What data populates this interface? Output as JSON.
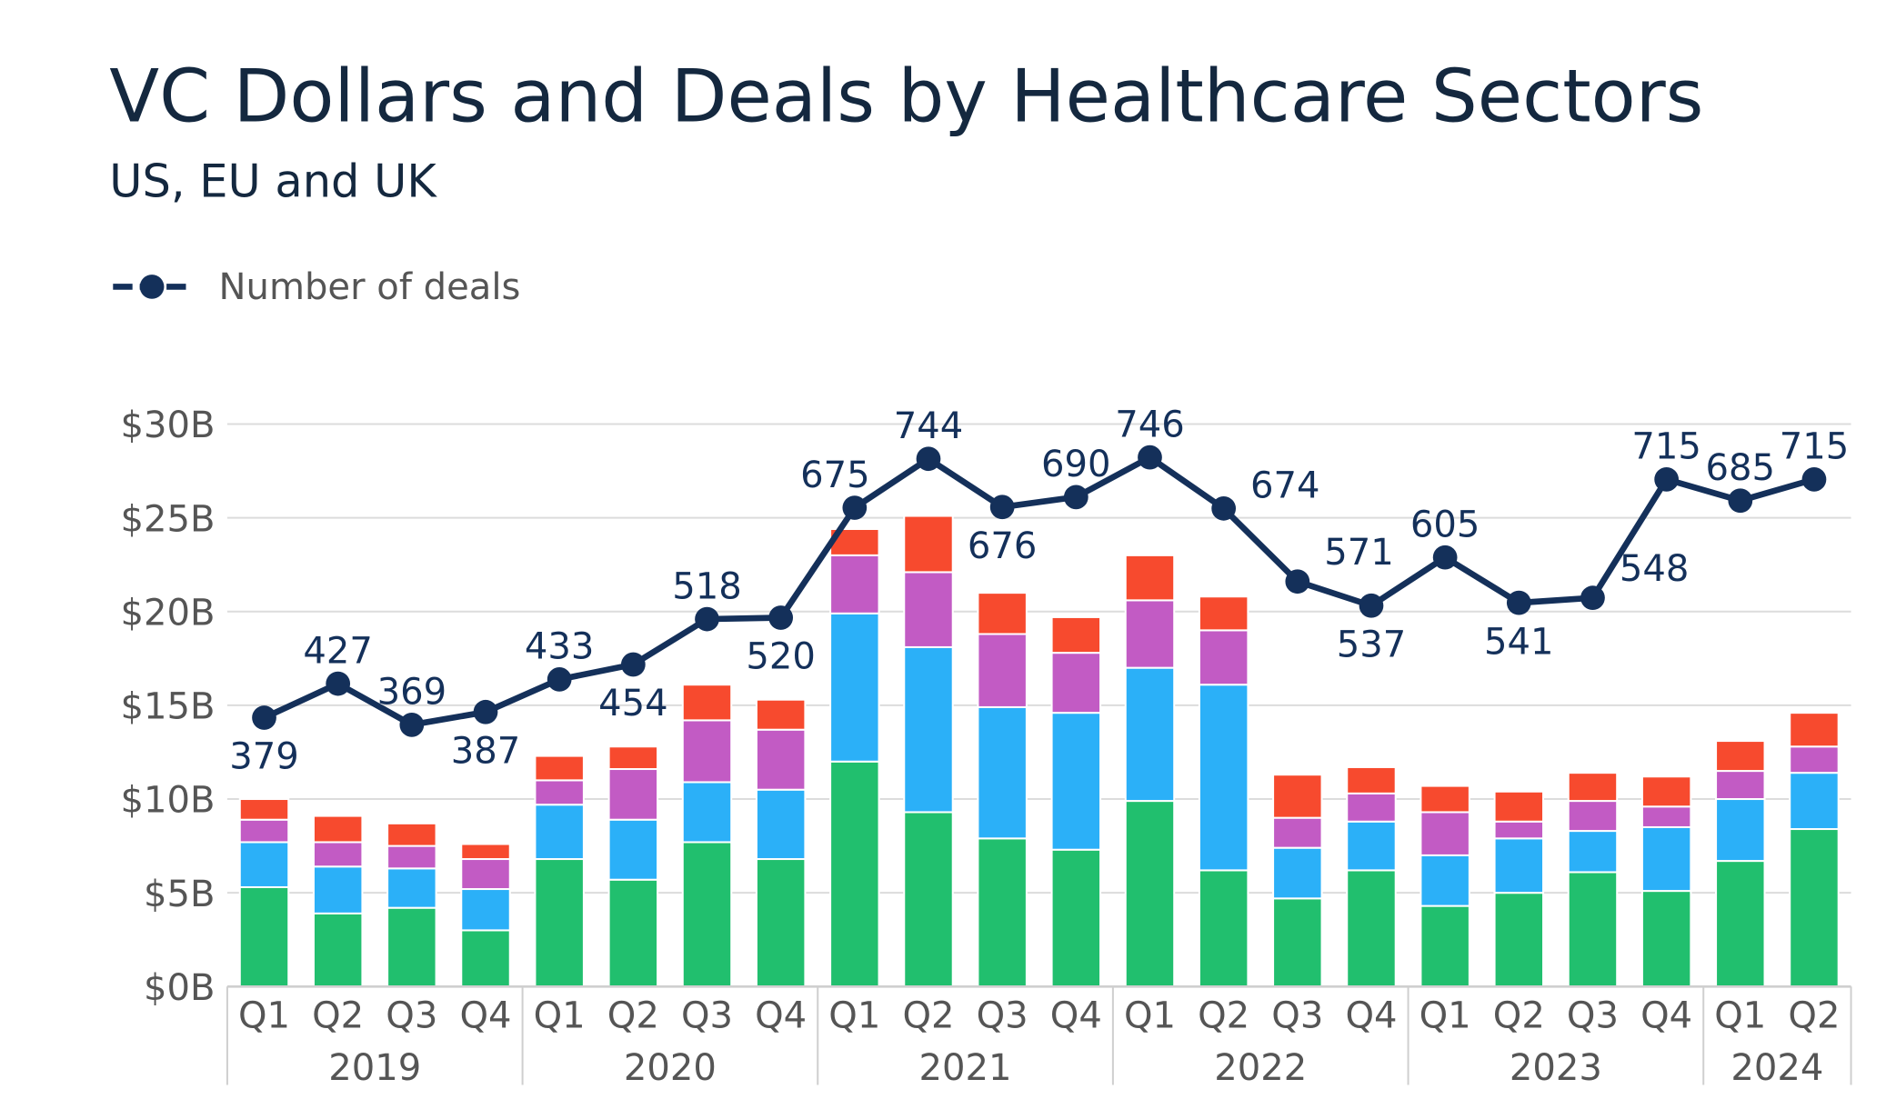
{
  "chart_data": {
    "type": "bar",
    "stacked": true,
    "title": "VC Dollars and Deals by Healthcare Sectors",
    "subtitle": "US, EU and UK",
    "ylim": [
      0,
      30
    ],
    "yticks": [
      "$0B",
      "$5B",
      "$10B",
      "$15B",
      "$20B",
      "$25B",
      "$30B"
    ],
    "ytick_values": [
      0,
      5,
      10,
      15,
      20,
      25,
      30
    ],
    "grid": true,
    "legend_position": "top-left",
    "categories": [
      "Q1",
      "Q2",
      "Q3",
      "Q4",
      "Q1",
      "Q2",
      "Q3",
      "Q4",
      "Q1",
      "Q2",
      "Q3",
      "Q4",
      "Q1",
      "Q2",
      "Q3",
      "Q4",
      "Q1",
      "Q2",
      "Q3",
      "Q4",
      "Q1",
      "Q2"
    ],
    "years": [
      {
        "label": "2019",
        "quarters": 4
      },
      {
        "label": "2020",
        "quarters": 4
      },
      {
        "label": "2021",
        "quarters": 4
      },
      {
        "label": "2022",
        "quarters": 4
      },
      {
        "label": "2023",
        "quarters": 4
      },
      {
        "label": "2024",
        "quarters": 2
      }
    ],
    "series": [
      {
        "color": "#21bf6e",
        "values": [
          5.3,
          3.9,
          4.2,
          3.0,
          6.8,
          5.7,
          7.7,
          6.8,
          12.0,
          9.3,
          7.9,
          7.3,
          9.9,
          6.2,
          4.7,
          6.2,
          4.3,
          5.0,
          6.1,
          5.1,
          6.7,
          8.4
        ]
      },
      {
        "color": "#2bb0f8",
        "values": [
          2.4,
          2.5,
          2.1,
          2.2,
          2.9,
          3.2,
          3.2,
          3.7,
          7.9,
          8.8,
          7.0,
          7.3,
          7.1,
          9.9,
          2.7,
          2.6,
          2.7,
          2.9,
          2.2,
          3.4,
          3.3,
          3.0
        ]
      },
      {
        "color": "#c25bc4",
        "values": [
          1.2,
          1.3,
          1.2,
          1.6,
          1.3,
          2.7,
          3.3,
          3.2,
          3.1,
          4.0,
          3.9,
          3.2,
          3.6,
          2.9,
          1.6,
          1.5,
          2.3,
          0.9,
          1.6,
          1.1,
          1.5,
          1.4
        ]
      },
      {
        "color": "#f74a2e",
        "values": [
          1.1,
          1.4,
          1.2,
          0.8,
          1.3,
          1.2,
          1.9,
          1.6,
          1.4,
          3.0,
          2.2,
          1.9,
          2.4,
          1.8,
          2.3,
          1.4,
          1.4,
          1.6,
          1.5,
          1.6,
          1.6,
          1.8
        ]
      }
    ],
    "line_series": {
      "name": "Number of deals",
      "color": "#14305a",
      "axis": "secondary (hidden)",
      "values": [
        379,
        427,
        369,
        387,
        433,
        454,
        518,
        520,
        675,
        744,
        676,
        690,
        746,
        674,
        571,
        537,
        605,
        541,
        548,
        715,
        685,
        715
      ]
    }
  }
}
